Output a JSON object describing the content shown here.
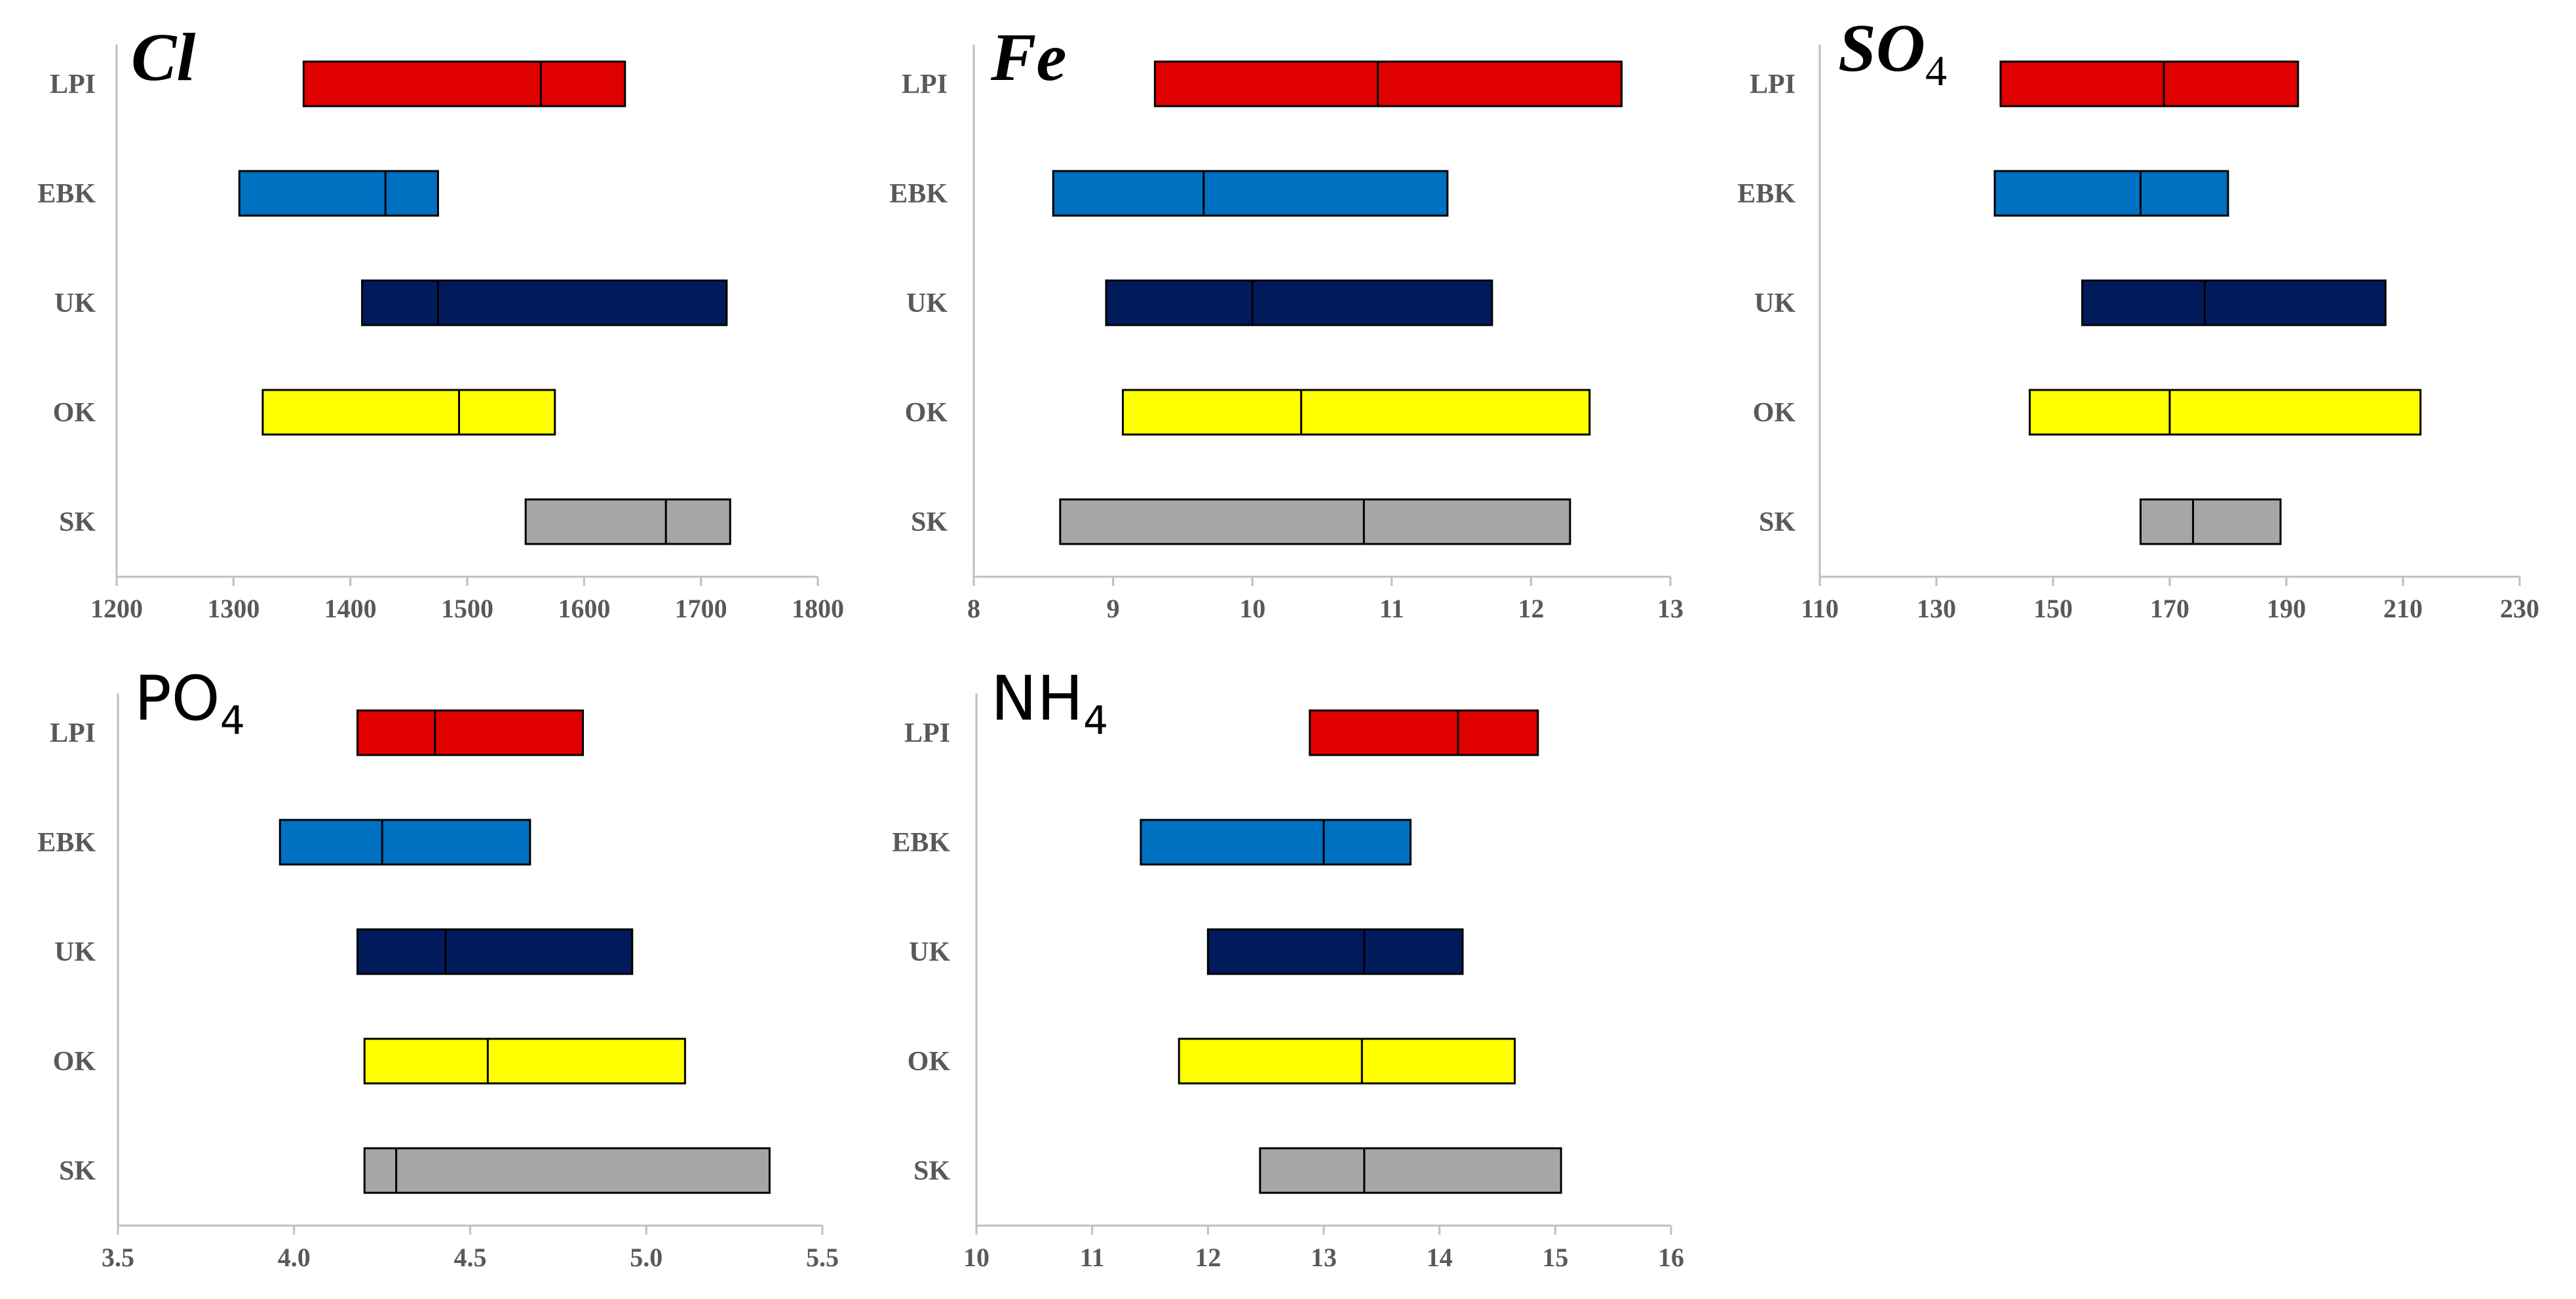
{
  "chart_data": [
    {
      "type": "bar",
      "subtype": "floating-range-with-median",
      "title": "Cl",
      "title_style": "italic-bold",
      "categories": [
        "LPI",
        "EBK",
        "UK",
        "OK",
        "SK"
      ],
      "ranges": [
        {
          "low": 1360,
          "median": 1563,
          "high": 1635
        },
        {
          "low": 1305,
          "median": 1430,
          "high": 1475
        },
        {
          "low": 1410,
          "median": 1475,
          "high": 1722
        },
        {
          "low": 1325,
          "median": 1493,
          "high": 1575
        },
        {
          "low": 1550,
          "median": 1670,
          "high": 1725
        }
      ],
      "colors": [
        "#e00000",
        "#0070c0",
        "#001a5c",
        "#ffff00",
        "#a6a6a6"
      ],
      "xlim": [
        1200,
        1800
      ],
      "xticks": [
        "1200",
        "1300",
        "1400",
        "1500",
        "1600",
        "1700",
        "1800"
      ]
    },
    {
      "type": "bar",
      "subtype": "floating-range-with-median",
      "title": "Fe",
      "title_style": "italic-bold",
      "categories": [
        "LPI",
        "EBK",
        "UK",
        "OK",
        "SK"
      ],
      "ranges": [
        {
          "low": 9.3,
          "median": 10.9,
          "high": 12.65
        },
        {
          "low": 8.57,
          "median": 9.65,
          "high": 11.4
        },
        {
          "low": 8.95,
          "median": 10.0,
          "high": 11.72
        },
        {
          "low": 9.07,
          "median": 10.35,
          "high": 12.42
        },
        {
          "low": 8.62,
          "median": 10.8,
          "high": 12.28
        }
      ],
      "colors": [
        "#e00000",
        "#0070c0",
        "#001a5c",
        "#ffff00",
        "#a6a6a6"
      ],
      "xlim": [
        8,
        13
      ],
      "xticks": [
        "8",
        "9",
        "10",
        "11",
        "12",
        "13"
      ]
    },
    {
      "type": "bar",
      "subtype": "floating-range-with-median",
      "title": "SO",
      "title_sub": "4",
      "title_style": "italic-bold",
      "categories": [
        "LPI",
        "EBK",
        "UK",
        "OK",
        "SK"
      ],
      "ranges": [
        {
          "low": 141,
          "median": 169,
          "high": 192
        },
        {
          "low": 140,
          "median": 165,
          "high": 180
        },
        {
          "low": 155,
          "median": 176,
          "high": 207
        },
        {
          "low": 146,
          "median": 170,
          "high": 213
        },
        {
          "low": 165,
          "median": 174,
          "high": 189
        }
      ],
      "colors": [
        "#e00000",
        "#0070c0",
        "#001a5c",
        "#ffff00",
        "#a6a6a6"
      ],
      "xlim": [
        110,
        230
      ],
      "xticks": [
        "110",
        "130",
        "150",
        "170",
        "190",
        "210",
        "230"
      ]
    },
    {
      "type": "bar",
      "subtype": "floating-range-with-median",
      "title": "PO",
      "title_sub": "4",
      "title_style": "upright",
      "categories": [
        "LPI",
        "EBK",
        "UK",
        "OK",
        "SK"
      ],
      "ranges": [
        {
          "low": 4.18,
          "median": 4.4,
          "high": 4.82
        },
        {
          "low": 3.96,
          "median": 4.25,
          "high": 4.67
        },
        {
          "low": 4.18,
          "median": 4.43,
          "high": 4.96
        },
        {
          "low": 4.2,
          "median": 4.55,
          "high": 5.11
        },
        {
          "low": 4.2,
          "median": 4.29,
          "high": 5.35
        }
      ],
      "colors": [
        "#e00000",
        "#0070c0",
        "#001a5c",
        "#ffff00",
        "#a6a6a6"
      ],
      "xlim": [
        3.5,
        5.5
      ],
      "xticks": [
        "3.5",
        "4.0",
        "4.5",
        "5.0",
        "5.5"
      ]
    },
    {
      "type": "bar",
      "subtype": "floating-range-with-median",
      "title": "NH",
      "title_sub": "4",
      "title_style": "upright",
      "categories": [
        "LPI",
        "EBK",
        "UK",
        "OK",
        "SK"
      ],
      "ranges": [
        {
          "low": 12.88,
          "median": 14.16,
          "high": 14.85
        },
        {
          "low": 11.42,
          "median": 13.0,
          "high": 13.75
        },
        {
          "low": 12.0,
          "median": 13.35,
          "high": 14.2
        },
        {
          "low": 11.75,
          "median": 13.33,
          "high": 14.65
        },
        {
          "low": 12.45,
          "median": 13.35,
          "high": 15.05
        }
      ],
      "colors": [
        "#e00000",
        "#0070c0",
        "#001a5c",
        "#ffff00",
        "#a6a6a6"
      ],
      "xlim": [
        10,
        16
      ],
      "xticks": [
        "10",
        "11",
        "12",
        "13",
        "14",
        "15",
        "16"
      ]
    }
  ]
}
